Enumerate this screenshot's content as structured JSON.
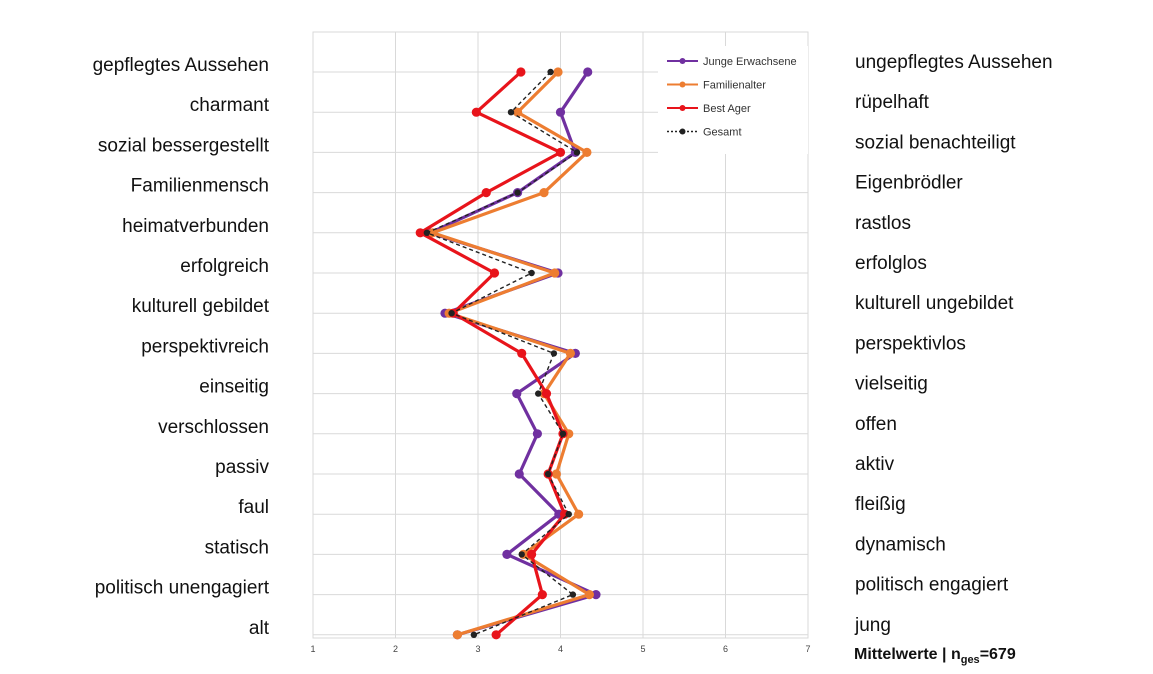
{
  "chart_data": {
    "type": "line",
    "left_labels": [
      "gepflegtes Aussehen",
      "charmant",
      "sozial bessergestellt",
      "Familienmensch",
      "heimatverbunden",
      "erfolgreich",
      "kulturell gebildet",
      "perspektivreich",
      "einseitig",
      "verschlossen",
      "passiv",
      "faul",
      "statisch",
      "politisch unengagiert",
      "alt"
    ],
    "right_labels": [
      "ungepflegtes Aussehen",
      "rüpelhaft",
      "sozial benachteiligt",
      "Eigenbrödler",
      "rastlos",
      "erfolglos",
      "kulturell ungebildet",
      "perspektivlos",
      "vielseitig",
      "offen",
      "aktiv",
      "fleißig",
      "dynamisch",
      "politisch engagiert",
      "jung"
    ],
    "x_ticks": [
      1,
      2,
      3,
      4,
      5,
      6,
      7
    ],
    "xlim": [
      1,
      7
    ],
    "grid": true,
    "legend_position": "top-right",
    "series": [
      {
        "name": "Junge Erwachsene",
        "color": "#7030a0",
        "style": "solid",
        "values": [
          4.33,
          4.0,
          4.18,
          3.48,
          2.42,
          3.97,
          2.6,
          4.18,
          3.47,
          3.72,
          3.5,
          3.98,
          3.35,
          4.43,
          2.75
        ]
      },
      {
        "name": "Familienalter",
        "color": "#ed7d31",
        "style": "solid",
        "values": [
          3.97,
          3.48,
          4.32,
          3.8,
          2.45,
          3.93,
          2.65,
          4.12,
          3.8,
          4.1,
          3.95,
          4.22,
          3.55,
          4.35,
          2.75
        ]
      },
      {
        "name": "Best Ager",
        "color": "#e8141b",
        "style": "solid",
        "values": [
          3.52,
          2.98,
          4.0,
          3.1,
          2.3,
          3.2,
          2.7,
          3.53,
          3.83,
          4.03,
          3.85,
          4.05,
          3.65,
          3.78,
          3.22
        ]
      },
      {
        "name": "Gesamt",
        "color": "#222222",
        "style": "dashed",
        "values": [
          3.88,
          3.4,
          4.2,
          3.48,
          2.38,
          3.65,
          2.68,
          3.92,
          3.73,
          4.03,
          3.85,
          4.1,
          3.53,
          4.15,
          2.95
        ]
      }
    ]
  },
  "footer": {
    "prefix": "Mittelwerte | n",
    "subscript": "ges",
    "suffix": "=679"
  }
}
